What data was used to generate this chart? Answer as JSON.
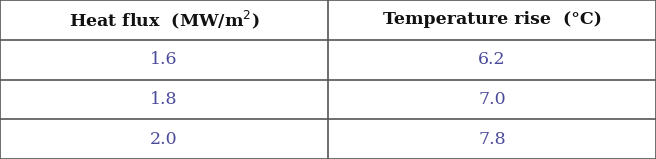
{
  "col1_header": "Heat flux  (MW/m",
  "col1_header_sup": "2",
  "col1_header_end": ")",
  "col2_header": "Temperature rise  (°C)",
  "rows": [
    [
      "1.6",
      "6.2"
    ],
    [
      "1.8",
      "7.0"
    ],
    [
      "2.0",
      "7.8"
    ]
  ],
  "header_fontsize": 12.5,
  "cell_fontsize": 12.5,
  "text_color": "#4a4a9a",
  "header_text_color": "#111111",
  "border_color": "#555555",
  "bg_color": "#ffffff",
  "figsize": [
    6.56,
    1.59
  ],
  "dpi": 100,
  "font_family": "serif"
}
